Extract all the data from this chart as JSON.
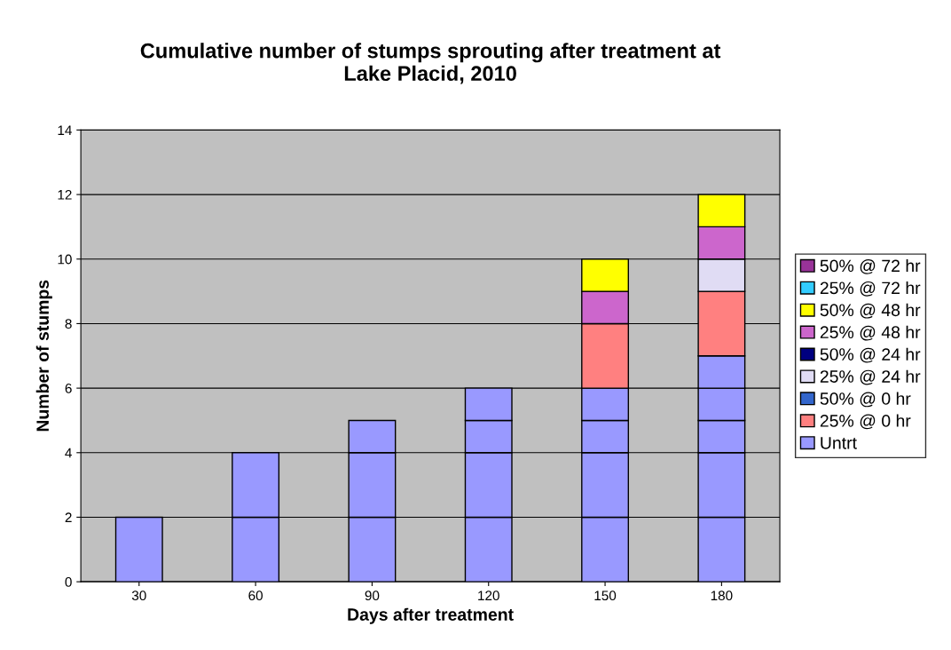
{
  "chart_data": {
    "type": "bar",
    "stacked": true,
    "title": "Cumulative number of stumps sprouting after treatment at\nLake Placid, 2010",
    "xlabel": "Days after treatment",
    "ylabel": "Number of stumps",
    "categories": [
      "30",
      "60",
      "90",
      "120",
      "150",
      "180"
    ],
    "ylim": [
      0,
      14
    ],
    "yticks": [
      0,
      2,
      4,
      6,
      8,
      10,
      12,
      14
    ],
    "grid": "y",
    "legend": "right",
    "series": [
      {
        "name": "Untrt",
        "color": "#9999ff",
        "values": [
          2,
          2,
          2,
          2,
          2,
          2
        ]
      },
      {
        "color": "#9999ff",
        "values": [
          null,
          2,
          2,
          2,
          2,
          2
        ]
      },
      {
        "color": "#9999ff",
        "values": [
          null,
          null,
          1,
          1,
          1,
          1
        ]
      },
      {
        "color": "#9999ff",
        "values": [
          null,
          null,
          null,
          1,
          1,
          1
        ]
      },
      {
        "color": "#9999ff",
        "values": [
          null,
          null,
          null,
          null,
          null,
          1
        ]
      },
      {
        "name": "25% @ 0 hr",
        "color": "#ff8080",
        "values": [
          null,
          null,
          null,
          null,
          2,
          2
        ]
      },
      {
        "name": "50% @ 0 hr",
        "color": "#3366cc",
        "values": [
          null,
          null,
          null,
          null,
          null,
          null
        ]
      },
      {
        "name": "25% @ 24 hr",
        "color": "#e0dcf4",
        "values": [
          null,
          null,
          null,
          null,
          null,
          1
        ]
      },
      {
        "name": "50% @ 24 hr",
        "color": "#000080",
        "values": [
          null,
          null,
          null,
          null,
          null,
          null
        ]
      },
      {
        "name": "25% @ 48 hr",
        "color": "#cc66cc",
        "values": [
          null,
          null,
          null,
          null,
          1,
          1
        ]
      },
      {
        "name": "50% @ 48 hr",
        "color": "#ffff00",
        "values": [
          null,
          null,
          null,
          null,
          1,
          1
        ]
      },
      {
        "name": "25% @ 72 hr",
        "color": "#33ccff",
        "values": [
          null,
          null,
          null,
          null,
          null,
          null
        ]
      },
      {
        "name": "50% @ 72 hr",
        "color": "#993399",
        "values": [
          null,
          null,
          null,
          null,
          null,
          null
        ]
      }
    ]
  }
}
